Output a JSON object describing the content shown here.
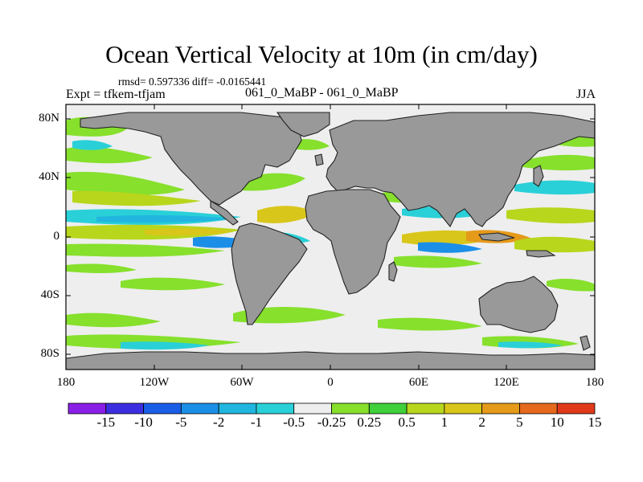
{
  "title": "Ocean Vertical Velocity at 10m (in cm/day)",
  "stats_line": "rmsd= 0.597336 diff= -0.0165441",
  "experiment": "Expt = tfkem-tfjam",
  "case_pair": "061_0_MaBP - 061_0_MaBP",
  "season": "JJA",
  "lat_labels": [
    "80N",
    "40N",
    "0",
    "40S",
    "80S"
  ],
  "lon_labels": [
    "180",
    "120W",
    "60W",
    "0",
    "60E",
    "120E",
    "180"
  ],
  "colorbar": {
    "labels": [
      "-15",
      "-10",
      "-5",
      "-2",
      "-1",
      "-0.5",
      "-0.25",
      "0.25",
      "0.5",
      "1",
      "2",
      "5",
      "10",
      "15"
    ],
    "colors": [
      "#8a1fe6",
      "#3c2ee0",
      "#1a5ee8",
      "#1b8fe8",
      "#20b6df",
      "#2ad0d8",
      "#eeeeee",
      "#86e02c",
      "#3fd03a",
      "#b8d61c",
      "#d9c61a",
      "#e59a1a",
      "#e66a1c",
      "#e03a1a"
    ]
  },
  "map": {
    "land_color": "#999999",
    "ocean_neutral_color": "#eeeeee",
    "lon_range": [
      -180,
      180
    ],
    "lat_range": [
      -90,
      90
    ]
  }
}
